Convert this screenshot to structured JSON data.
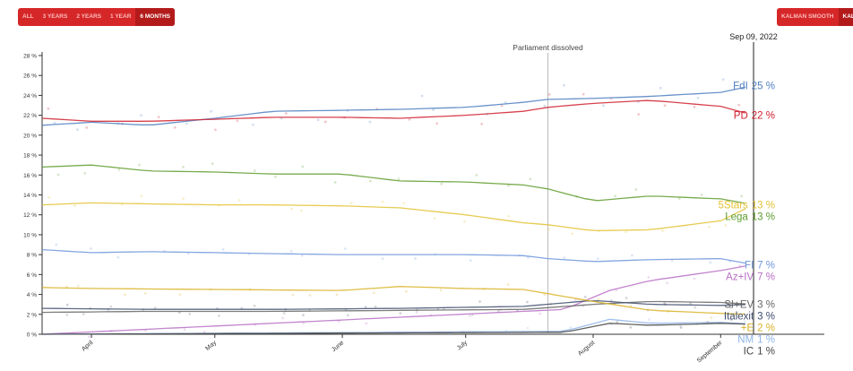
{
  "period_buttons": [
    {
      "label": "ALL",
      "active": false
    },
    {
      "label": "3 YEARS",
      "active": false
    },
    {
      "label": "2 YEARS",
      "active": false
    },
    {
      "label": "1 YEAR",
      "active": false
    },
    {
      "label": "6 MONTHS",
      "active": true
    }
  ],
  "filter_buttons": [
    {
      "label": "KALMAN SMOOTH",
      "active": false
    },
    {
      "label": "KALMAN",
      "active": true
    }
  ],
  "chart_data": {
    "type": "line",
    "title": "",
    "xlabel": "",
    "ylabel": "",
    "ylim": [
      0,
      28
    ],
    "xlim": [
      "2022-03-20",
      "2022-09-09"
    ],
    "y_ticks": [
      0,
      2,
      4,
      6,
      8,
      10,
      12,
      14,
      16,
      18,
      20,
      22,
      24,
      26,
      28
    ],
    "y_tick_suffix": " %",
    "x_ticks": [
      {
        "label": "April",
        "date": "2022-04-01"
      },
      {
        "label": "May",
        "date": "2022-05-01"
      },
      {
        "label": "June",
        "date": "2022-06-01"
      },
      {
        "label": "July",
        "date": "2022-07-01"
      },
      {
        "label": "August",
        "date": "2022-08-01"
      },
      {
        "label": "September",
        "date": "2022-09-01"
      }
    ],
    "current_date_label": "Sep 09, 2022",
    "annotations": [
      {
        "label": "Parliament dissolved",
        "date": "2022-07-21"
      }
    ],
    "series": [
      {
        "name": "FdI",
        "end_label": "25 %",
        "color": "#4f7fc0",
        "dates": [
          "2022-03-20",
          "2022-04-01",
          "2022-04-15",
          "2022-05-01",
          "2022-05-15",
          "2022-06-01",
          "2022-06-15",
          "2022-07-01",
          "2022-07-15",
          "2022-07-21",
          "2022-08-01",
          "2022-08-15",
          "2022-09-01",
          "2022-09-09"
        ],
        "values": [
          21.0,
          21.3,
          21.0,
          21.7,
          22.4,
          22.5,
          22.6,
          22.8,
          23.3,
          23.6,
          23.7,
          23.9,
          24.3,
          25.0
        ]
      },
      {
        "name": "PD",
        "end_label": "22 %",
        "color": "#d0202e",
        "dates": [
          "2022-03-20",
          "2022-04-01",
          "2022-04-15",
          "2022-05-01",
          "2022-05-15",
          "2022-06-01",
          "2022-06-15",
          "2022-07-01",
          "2022-07-15",
          "2022-07-21",
          "2022-08-01",
          "2022-08-15",
          "2022-09-01",
          "2022-09-09"
        ],
        "values": [
          21.7,
          21.4,
          21.4,
          21.6,
          21.8,
          21.8,
          21.7,
          22.0,
          22.4,
          22.8,
          23.2,
          23.5,
          22.9,
          22.0
        ]
      },
      {
        "name": "5Stars",
        "end_label": "13 %",
        "color": "#e3c232",
        "dates": [
          "2022-03-20",
          "2022-04-01",
          "2022-04-15",
          "2022-05-01",
          "2022-05-15",
          "2022-06-01",
          "2022-06-15",
          "2022-07-01",
          "2022-07-15",
          "2022-07-21",
          "2022-08-01",
          "2022-08-15",
          "2022-09-01",
          "2022-09-09"
        ],
        "values": [
          13.0,
          13.2,
          13.1,
          13.0,
          13.0,
          12.9,
          12.7,
          12.0,
          11.2,
          11.0,
          10.4,
          10.5,
          11.4,
          13.0
        ]
      },
      {
        "name": "Lega",
        "end_label": "13 %",
        "color": "#5f9c2e",
        "dates": [
          "2022-03-20",
          "2022-04-01",
          "2022-04-15",
          "2022-05-01",
          "2022-05-15",
          "2022-06-01",
          "2022-06-15",
          "2022-07-01",
          "2022-07-15",
          "2022-07-21",
          "2022-08-01",
          "2022-08-15",
          "2022-09-01",
          "2022-09-09"
        ],
        "values": [
          16.8,
          17.0,
          16.4,
          16.3,
          16.1,
          16.1,
          15.4,
          15.3,
          15.0,
          14.6,
          13.4,
          13.9,
          13.6,
          13.0
        ]
      },
      {
        "name": "FI",
        "end_label": "7 %",
        "color": "#6f97da",
        "dates": [
          "2022-03-20",
          "2022-04-01",
          "2022-04-15",
          "2022-05-01",
          "2022-05-15",
          "2022-06-01",
          "2022-06-15",
          "2022-07-01",
          "2022-07-15",
          "2022-07-21",
          "2022-08-01",
          "2022-08-15",
          "2022-09-01",
          "2022-09-09"
        ],
        "values": [
          8.5,
          8.2,
          8.3,
          8.2,
          8.1,
          8.0,
          8.0,
          8.0,
          7.9,
          7.6,
          7.3,
          7.5,
          7.6,
          7.0
        ]
      },
      {
        "name": "Az+IV",
        "end_label": "7 %",
        "color": "#b76ec4",
        "dates": [
          "2022-03-20",
          "2022-07-25",
          "2022-08-05",
          "2022-08-15",
          "2022-09-01",
          "2022-09-09"
        ],
        "values": [
          0.0,
          2.5,
          4.4,
          5.4,
          6.4,
          7.0
        ]
      },
      {
        "name": "SI+EV",
        "end_label": "3 %",
        "color": "#666666",
        "dates": [
          "2022-03-20",
          "2022-04-15",
          "2022-05-15",
          "2022-06-15",
          "2022-07-15",
          "2022-08-01",
          "2022-08-15",
          "2022-09-01",
          "2022-09-09"
        ],
        "values": [
          2.2,
          2.3,
          2.3,
          2.4,
          2.5,
          3.0,
          3.3,
          3.2,
          3.0
        ]
      },
      {
        "name": "Italexit",
        "end_label": "3 %",
        "color": "#3f4d6e",
        "dates": [
          "2022-03-20",
          "2022-04-15",
          "2022-05-15",
          "2022-06-15",
          "2022-07-15",
          "2022-08-01",
          "2022-08-15",
          "2022-09-01",
          "2022-09-09"
        ],
        "values": [
          2.6,
          2.5,
          2.5,
          2.6,
          2.8,
          3.4,
          3.0,
          2.9,
          3.0
        ]
      },
      {
        "name": "+E",
        "end_label": "2 %",
        "color": "#d9b124",
        "dates": [
          "2022-03-20",
          "2022-04-01",
          "2022-05-01",
          "2022-06-01",
          "2022-06-15",
          "2022-07-01",
          "2022-07-15",
          "2022-08-01",
          "2022-08-15",
          "2022-09-01",
          "2022-09-09"
        ],
        "values": [
          4.7,
          4.6,
          4.5,
          4.4,
          4.8,
          4.6,
          4.5,
          3.3,
          2.4,
          2.1,
          2.0
        ]
      },
      {
        "name": "NM",
        "end_label": "1 %",
        "color": "#8fb4e8",
        "dates": [
          "2022-03-20",
          "2022-07-25",
          "2022-08-05",
          "2022-08-15",
          "2022-09-01",
          "2022-09-09"
        ],
        "values": [
          0.0,
          0.3,
          1.5,
          1.1,
          1.2,
          1.0
        ]
      },
      {
        "name": "IC",
        "end_label": "1 %",
        "color": "#444444",
        "dates": [
          "2022-03-20",
          "2022-07-25",
          "2022-08-05",
          "2022-08-15",
          "2022-09-01",
          "2022-09-09"
        ],
        "values": [
          0.0,
          0.2,
          1.1,
          0.9,
          1.1,
          1.0
        ]
      }
    ]
  }
}
